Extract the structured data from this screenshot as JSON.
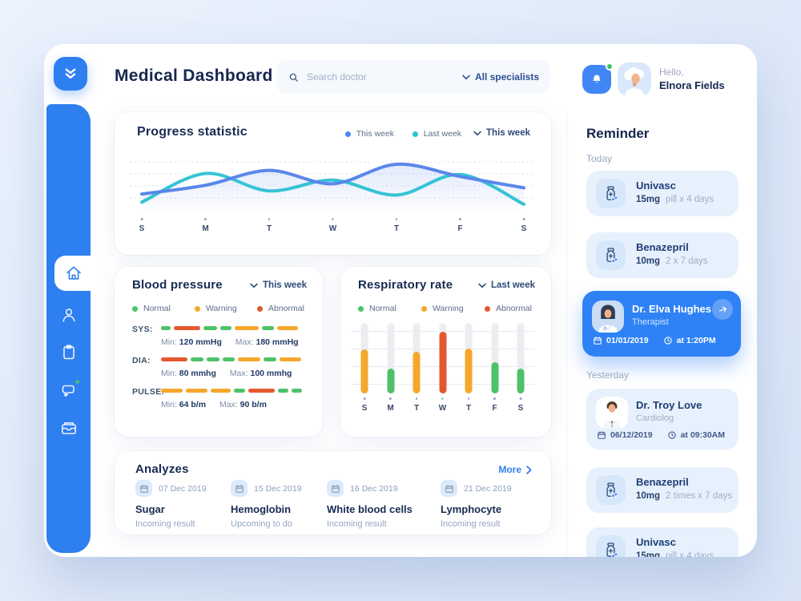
{
  "app": {
    "title": "Medical Dashboard"
  },
  "header": {
    "search_placeholder": "Search doctor",
    "specialists_label": "All specialists",
    "greeting": "Hello,",
    "user_name": "Elnora Fields"
  },
  "sidebar": {
    "icons": [
      "home",
      "patients",
      "records",
      "messages",
      "archive",
      "settings",
      "info"
    ]
  },
  "status_colors": {
    "normal": "#4fc168",
    "warning": "#f5a72c",
    "abnormal": "#e4582f"
  },
  "progress": {
    "title": "Progress statistic",
    "legend": [
      {
        "label": "This week",
        "color": "#4a86f7"
      },
      {
        "label": "Last week",
        "color": "#2bc3d6"
      }
    ],
    "dropdown": "This week"
  },
  "blood_pressure": {
    "title": "Blood pressure",
    "dropdown": "This week",
    "legend": [
      "Normal",
      "Warning",
      "Abnormal"
    ],
    "rows": [
      {
        "label": "SYS:",
        "min_label": "Min:",
        "min_value": "120 mmHg",
        "max_label": "Max:",
        "max_value": "180 mmHg",
        "segments": [
          [
            "normal",
            12
          ],
          [
            "abnormal",
            33
          ],
          [
            "normal",
            17
          ],
          [
            "normal",
            14
          ],
          [
            "warning",
            30
          ],
          [
            "normal",
            15
          ],
          [
            "warning",
            26
          ]
        ]
      },
      {
        "label": "DIA:",
        "min_label": "Min:",
        "min_value": "80 mmhg",
        "max_label": "Max:",
        "max_value": "100 mmhg",
        "segments": [
          [
            "abnormal",
            33
          ],
          [
            "normal",
            16
          ],
          [
            "normal",
            16
          ],
          [
            "normal",
            15
          ],
          [
            "warning",
            28
          ],
          [
            "normal",
            16
          ],
          [
            "warning",
            27
          ]
        ]
      },
      {
        "label": "PULSE:",
        "min_label": "Min:",
        "min_value": "64 b/m",
        "max_label": "Max:",
        "max_value": "90 b/m",
        "segments": [
          [
            "warning",
            27
          ],
          [
            "warning",
            27
          ],
          [
            "warning",
            25
          ],
          [
            "normal",
            14
          ],
          [
            "abnormal",
            33
          ],
          [
            "normal",
            13
          ],
          [
            "normal",
            13
          ]
        ]
      }
    ]
  },
  "respiratory": {
    "title": "Respiratory rate",
    "dropdown": "Last week",
    "legend": [
      "Normal",
      "Warning",
      "Abnormal"
    ]
  },
  "analyzes": {
    "title": "Analyzes",
    "more_label": "More",
    "items": [
      {
        "date": "07 Dec 2019",
        "name": "Sugar",
        "status": "Incoming result"
      },
      {
        "date": "15 Dec 2019",
        "name": "Hemoglobin",
        "status": "Upcoming to do"
      },
      {
        "date": "16 Dec 2019",
        "name": "White blood cells",
        "status": "Incoming result"
      },
      {
        "date": "21 Dec 2019",
        "name": "Lymphocyte",
        "status": "Incoming result"
      }
    ]
  },
  "reminder": {
    "title": "Reminder",
    "today_label": "Today",
    "yesterday_label": "Yesterday",
    "today_cards": [
      {
        "type": "medication",
        "name": "Univasc",
        "dose": "15mg",
        "schedule": "pill x 4 days"
      },
      {
        "type": "medication",
        "name": "Benazepril",
        "dose": "10mg",
        "schedule": "2 x 7 days"
      },
      {
        "type": "appointment",
        "name": "Dr. Elva Hughes",
        "role": "Therapist",
        "date": "01/01/2019",
        "time": "at 1:20PM",
        "highlighted": true
      }
    ],
    "yesterday_cards": [
      {
        "type": "appointment",
        "name": "Dr. Troy Love",
        "role": "Cardiolog",
        "date": "06/12/2019",
        "time": "at 09:30AM"
      },
      {
        "type": "medication",
        "name": "Benazepril",
        "dose": "10mg",
        "schedule": "2 times x 7 days"
      },
      {
        "type": "medication",
        "name": "Univasc",
        "dose": "15mg",
        "schedule": "pill x 4 days"
      }
    ]
  },
  "chart_data": [
    {
      "type": "line",
      "title": "Progress statistic",
      "x": [
        "S",
        "M",
        "T",
        "W",
        "T",
        "F",
        "S"
      ],
      "series": [
        {
          "name": "This week",
          "color": "#5a87ea",
          "values": [
            28,
            45,
            74,
            48,
            86,
            62,
            40
          ]
        },
        {
          "name": "Last week",
          "color": "#35c3d4",
          "values": [
            12,
            68,
            34,
            55,
            26,
            66,
            8
          ]
        }
      ],
      "ylim": [
        0,
        100
      ],
      "grid": "dotted-horizontal",
      "legend_position": "top-right"
    },
    {
      "type": "bar",
      "title": "Respiratory rate",
      "categories": [
        "S",
        "M",
        "T",
        "W",
        "T",
        "F",
        "S"
      ],
      "values": [
        63,
        35,
        59,
        88,
        64,
        44,
        35
      ],
      "statuses": [
        "warning",
        "normal",
        "warning",
        "abnormal",
        "warning",
        "normal",
        "normal"
      ],
      "ylim": [
        0,
        100
      ],
      "grid": "dotted-horizontal"
    }
  ]
}
